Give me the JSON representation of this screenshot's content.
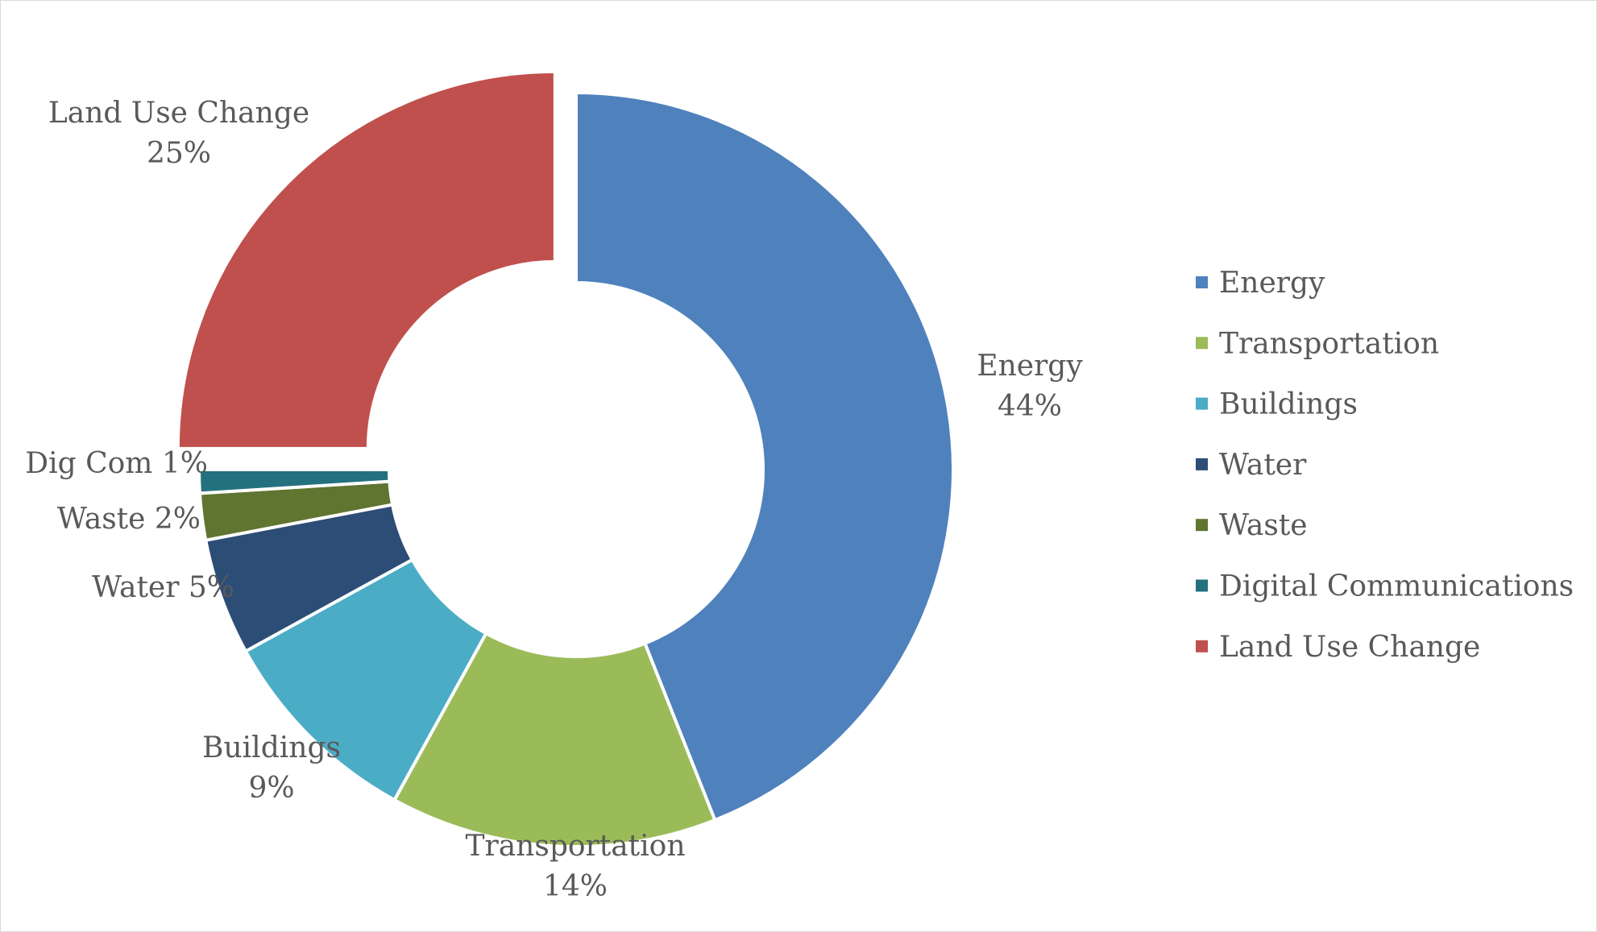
{
  "chart_data": {
    "type": "pie",
    "donut": true,
    "title": "",
    "legend_position": "right",
    "slices": [
      {
        "name": "Energy",
        "value": 44,
        "color": "#4F81BD",
        "label_lines": [
          "Energy",
          "44%"
        ]
      },
      {
        "name": "Transportation",
        "value": 14,
        "color": "#9BBB59",
        "label_lines": [
          "Transportation",
          "14%"
        ]
      },
      {
        "name": "Buildings",
        "value": 9,
        "color": "#4BACC6",
        "label_lines": [
          "Buildings",
          "9%"
        ]
      },
      {
        "name": "Water",
        "value": 5,
        "color": "#2C4D75",
        "label_lines": [
          "Water 5%"
        ]
      },
      {
        "name": "Waste",
        "value": 2,
        "color": "#5F7530",
        "label_lines": [
          "Waste 2%"
        ]
      },
      {
        "name": "Digital Communications",
        "value": 1,
        "color": "#23717F",
        "label_lines": [
          "Dig Com 1%"
        ]
      },
      {
        "name": "Land Use Change",
        "value": 25,
        "color": "#C0504D",
        "label_lines": [
          "Land Use Change",
          "25%"
        ],
        "exploded": true
      }
    ]
  }
}
